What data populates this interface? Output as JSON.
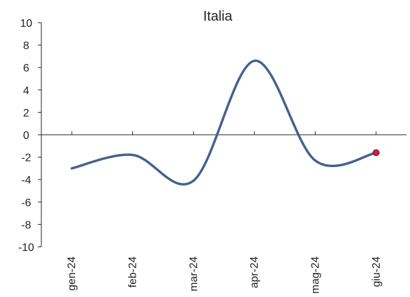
{
  "chart_data": {
    "type": "line",
    "title": "Italia",
    "xlabel": "",
    "ylabel": "",
    "categories": [
      "gen-24",
      "feb-24",
      "mar-24",
      "apr-24",
      "mag-24",
      "giu-24"
    ],
    "series": [
      {
        "values": [
          -3.0,
          -1.8,
          -4.1,
          6.6,
          -2.3,
          -1.6
        ],
        "color": "#44618f"
      }
    ],
    "ylim": [
      -10,
      10
    ],
    "yticks": [
      10,
      8,
      6,
      4,
      2,
      0,
      -2,
      -4,
      -6,
      -8,
      -10
    ],
    "ytick_labels": [
      "10",
      "8",
      "6",
      "4",
      "2",
      "0",
      "-2",
      "-4",
      "-6",
      "-8",
      "-10"
    ],
    "grid": false,
    "legend": "none",
    "last_point_marker_color": "#d81e2a"
  }
}
